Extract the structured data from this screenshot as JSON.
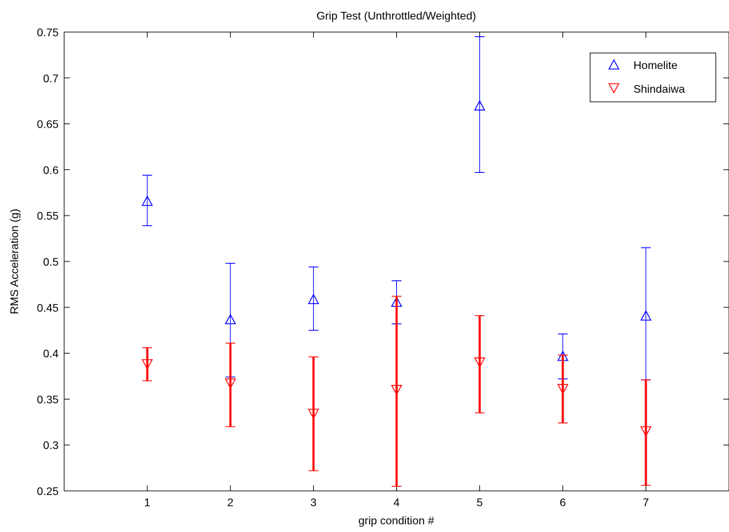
{
  "chart_data": {
    "type": "errorbar",
    "title": "Grip Test (Unthrottled/Weighted)",
    "xlabel": "grip condition #",
    "ylabel": "RMS Acceleration (g)",
    "xlim": [
      0,
      8
    ],
    "ylim": [
      0.25,
      0.75
    ],
    "xticks": [
      "1",
      "2",
      "3",
      "4",
      "5",
      "6",
      "7"
    ],
    "yticks": [
      "0.25",
      "0.3",
      "0.35",
      "0.4",
      "0.45",
      "0.5",
      "0.55",
      "0.6",
      "0.65",
      "0.7",
      "0.75"
    ],
    "grid": false,
    "legend": {
      "position": "top-right"
    },
    "series": [
      {
        "name": "Homelite",
        "color": "#0000ff",
        "marker": "triangle-up",
        "x": [
          1,
          2,
          3,
          4,
          5,
          6,
          7
        ],
        "mean": [
          0.566,
          0.437,
          0.459,
          0.456,
          0.67,
          0.397,
          0.441
        ],
        "upper": [
          0.594,
          0.498,
          0.494,
          0.479,
          0.745,
          0.421,
          0.515
        ],
        "lower": [
          0.539,
          0.374,
          0.425,
          0.432,
          0.597,
          0.372,
          0.371
        ]
      },
      {
        "name": "Shindaiwa",
        "color": "#ff0000",
        "marker": "triangle-down",
        "x": [
          1,
          2,
          3,
          4,
          5,
          6,
          7
        ],
        "mean": [
          0.388,
          0.367,
          0.334,
          0.36,
          0.39,
          0.361,
          0.315
        ],
        "upper": [
          0.406,
          0.411,
          0.396,
          0.462,
          0.441,
          0.398,
          0.371
        ],
        "lower": [
          0.37,
          0.32,
          0.272,
          0.255,
          0.335,
          0.324,
          0.256
        ]
      }
    ]
  }
}
